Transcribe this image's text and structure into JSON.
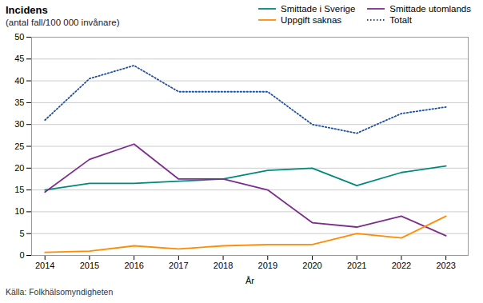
{
  "chart_data": {
    "type": "line",
    "title": "Incidens",
    "subtitle": "(antal fall/100 000 invånare)",
    "source": "Källa:  Folkhälsomyndigheten",
    "x_label": "År",
    "x": [
      2014,
      2015,
      2016,
      2017,
      2018,
      2019,
      2020,
      2021,
      2022,
      2023
    ],
    "series": [
      {
        "name": "Smittade i Sverige",
        "color": "#00897B",
        "line_style": "solid",
        "values": [
          15.0,
          16.5,
          16.5,
          17.0,
          17.5,
          19.5,
          20.0,
          16.0,
          19.0,
          20.5
        ]
      },
      {
        "name": "Smittade utomlands",
        "color": "#7B2D8B",
        "line_style": "solid",
        "values": [
          14.5,
          22.0,
          25.5,
          17.5,
          17.5,
          15.0,
          7.5,
          6.5,
          9.0,
          4.5
        ]
      },
      {
        "name": "Uppgift saknas",
        "color": "#FF8C00",
        "line_style": "solid",
        "values": [
          0.7,
          1.0,
          2.2,
          1.5,
          2.2,
          2.5,
          2.5,
          5.0,
          4.0,
          9.0
        ]
      },
      {
        "name": "Totalt",
        "color": "#1F4E9B",
        "line_style": "dotted",
        "values": [
          31.0,
          40.5,
          43.5,
          37.5,
          37.5,
          37.5,
          30.0,
          28.0,
          32.5,
          34.0
        ]
      }
    ],
    "xlim": [
      2013.7,
      2023.5
    ],
    "xticks": [
      2014,
      2015,
      2016,
      2017,
      2018,
      2019,
      2020,
      2021,
      2022,
      2023
    ],
    "ylim": [
      0,
      50
    ],
    "yticks": [
      0,
      5,
      10,
      15,
      20,
      25,
      30,
      35,
      40,
      45,
      50
    ],
    "grid": true,
    "legend": "top"
  }
}
